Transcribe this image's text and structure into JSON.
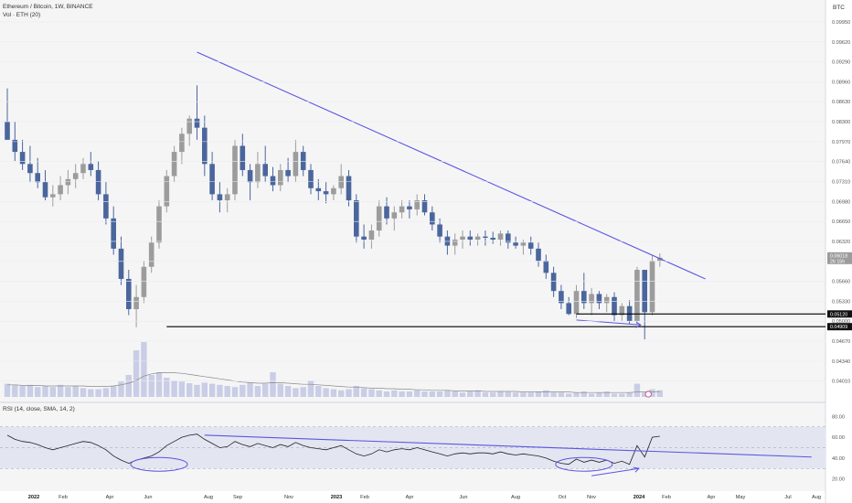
{
  "header": {
    "title": "Ethereum / Bitcoin, 1W, BINANCE",
    "volume_label": "Vol · ETH (20)",
    "currency": "BTC"
  },
  "rsi_header": "RSI (14, close, SMA, 14, 2)",
  "price_badges": {
    "current": "0.06018",
    "current_sub": "26 15h",
    "support_high": "0.05120",
    "support_low": "0.04909"
  },
  "colors": {
    "up": "#9c9c9c",
    "down": "#4a669c",
    "trendline": "#5a55e0",
    "support": "#000000",
    "rsi": "#222222",
    "rsi_band": "#e3e6f1"
  },
  "chart_data": [
    {
      "type": "candlestick",
      "title": "Ethereum / Bitcoin, 1W, BINANCE",
      "ylabel": "BTC",
      "ylim": [
        0.0396,
        0.1004
      ],
      "y_ticks": [
        0.0995,
        0.0962,
        0.0929,
        0.0896,
        0.0863,
        0.083,
        0.0797,
        0.0764,
        0.0731,
        0.0698,
        0.0665,
        0.0632,
        0.0599,
        0.0566,
        0.0533,
        0.05,
        0.0467,
        0.0434,
        0.0401
      ],
      "x_ticks": [
        "2022",
        "Feb",
        "Apr",
        "Jun",
        "Aug",
        "Sep",
        "Nov",
        "2023",
        "Feb",
        "Apr",
        "Jun",
        "Aug",
        "Oct",
        "Nov",
        "2024",
        "Feb",
        "Apr",
        "May",
        "Jul",
        "Aug"
      ],
      "candles": [
        [
          0.083,
          0.0885,
          0.0805,
          0.08
        ],
        [
          0.08,
          0.083,
          0.0765,
          0.078
        ],
        [
          0.078,
          0.08,
          0.075,
          0.076
        ],
        [
          0.076,
          0.079,
          0.073,
          0.0745
        ],
        [
          0.0745,
          0.077,
          0.072,
          0.073
        ],
        [
          0.073,
          0.075,
          0.07,
          0.0705
        ],
        [
          0.0705,
          0.0725,
          0.069,
          0.071
        ],
        [
          0.071,
          0.074,
          0.07,
          0.0725
        ],
        [
          0.0725,
          0.075,
          0.071,
          0.0735
        ],
        [
          0.0735,
          0.076,
          0.072,
          0.0745
        ],
        [
          0.0745,
          0.077,
          0.0735,
          0.076
        ],
        [
          0.076,
          0.078,
          0.074,
          0.075
        ],
        [
          0.075,
          0.0765,
          0.07,
          0.071
        ],
        [
          0.071,
          0.073,
          0.066,
          0.067
        ],
        [
          0.067,
          0.069,
          0.061,
          0.062
        ],
        [
          0.062,
          0.064,
          0.056,
          0.057
        ],
        [
          0.057,
          0.0585,
          0.051,
          0.052
        ],
        [
          0.052,
          0.056,
          0.049,
          0.054
        ],
        [
          0.054,
          0.06,
          0.053,
          0.059
        ],
        [
          0.059,
          0.064,
          0.058,
          0.063
        ],
        [
          0.063,
          0.07,
          0.062,
          0.069
        ],
        [
          0.069,
          0.075,
          0.068,
          0.074
        ],
        [
          0.074,
          0.079,
          0.073,
          0.078
        ],
        [
          0.078,
          0.082,
          0.076,
          0.081
        ],
        [
          0.081,
          0.084,
          0.079,
          0.0835
        ],
        [
          0.0835,
          0.089,
          0.08,
          0.082
        ],
        [
          0.082,
          0.084,
          0.074,
          0.076
        ],
        [
          0.076,
          0.078,
          0.07,
          0.071
        ],
        [
          0.071,
          0.073,
          0.068,
          0.07
        ],
        [
          0.07,
          0.072,
          0.068,
          0.071
        ],
        [
          0.071,
          0.08,
          0.07,
          0.079
        ],
        [
          0.079,
          0.081,
          0.074,
          0.075
        ],
        [
          0.075,
          0.076,
          0.07,
          0.073
        ],
        [
          0.073,
          0.078,
          0.072,
          0.076
        ],
        [
          0.076,
          0.079,
          0.073,
          0.074
        ],
        [
          0.074,
          0.0755,
          0.0715,
          0.0725
        ],
        [
          0.0725,
          0.076,
          0.0715,
          0.075
        ],
        [
          0.075,
          0.077,
          0.073,
          0.074
        ],
        [
          0.074,
          0.08,
          0.073,
          0.078
        ],
        [
          0.078,
          0.079,
          0.074,
          0.075
        ],
        [
          0.075,
          0.076,
          0.071,
          0.072
        ],
        [
          0.072,
          0.0735,
          0.07,
          0.0715
        ],
        [
          0.0715,
          0.073,
          0.0695,
          0.071
        ],
        [
          0.071,
          0.0725,
          0.07,
          0.072
        ],
        [
          0.072,
          0.076,
          0.071,
          0.074
        ],
        [
          0.074,
          0.075,
          0.069,
          0.07
        ],
        [
          0.07,
          0.071,
          0.063,
          0.064
        ],
        [
          0.064,
          0.066,
          0.062,
          0.0635
        ],
        [
          0.0635,
          0.066,
          0.062,
          0.065
        ],
        [
          0.065,
          0.07,
          0.064,
          0.069
        ],
        [
          0.069,
          0.0705,
          0.066,
          0.067
        ],
        [
          0.067,
          0.069,
          0.065,
          0.068
        ],
        [
          0.068,
          0.07,
          0.067,
          0.069
        ],
        [
          0.069,
          0.07,
          0.067,
          0.0685
        ],
        [
          0.0685,
          0.071,
          0.0675,
          0.07
        ],
        [
          0.07,
          0.071,
          0.0675,
          0.068
        ],
        [
          0.068,
          0.069,
          0.065,
          0.066
        ],
        [
          0.066,
          0.067,
          0.063,
          0.064
        ],
        [
          0.064,
          0.065,
          0.061,
          0.0625
        ],
        [
          0.0625,
          0.0645,
          0.061,
          0.0635
        ],
        [
          0.0635,
          0.065,
          0.062,
          0.064
        ],
        [
          0.064,
          0.065,
          0.0625,
          0.0635
        ],
        [
          0.0635,
          0.0645,
          0.0625,
          0.064
        ],
        [
          0.064,
          0.065,
          0.0625,
          0.0638
        ],
        [
          0.0638,
          0.0648,
          0.0628,
          0.0635
        ],
        [
          0.0635,
          0.065,
          0.0625,
          0.0645
        ],
        [
          0.0645,
          0.065,
          0.062,
          0.063
        ],
        [
          0.063,
          0.064,
          0.062,
          0.0625
        ],
        [
          0.0625,
          0.0635,
          0.061,
          0.063
        ],
        [
          0.063,
          0.064,
          0.061,
          0.062
        ],
        [
          0.062,
          0.063,
          0.059,
          0.06
        ],
        [
          0.06,
          0.061,
          0.057,
          0.058
        ],
        [
          0.058,
          0.059,
          0.054,
          0.055
        ],
        [
          0.055,
          0.056,
          0.052,
          0.053
        ],
        [
          0.053,
          0.054,
          0.051,
          0.0512
        ],
        [
          0.0512,
          0.056,
          0.0505,
          0.055
        ],
        [
          0.055,
          0.058,
          0.052,
          0.053
        ],
        [
          0.053,
          0.0555,
          0.051,
          0.0545
        ],
        [
          0.0545,
          0.055,
          0.052,
          0.053
        ],
        [
          0.053,
          0.0545,
          0.0515,
          0.054
        ],
        [
          0.054,
          0.0548,
          0.05,
          0.051
        ],
        [
          0.051,
          0.053,
          0.05,
          0.0525
        ],
        [
          0.0525,
          0.0535,
          0.0495,
          0.05
        ],
        [
          0.05,
          0.059,
          0.0495,
          0.0585
        ],
        [
          0.0585,
          0.0585,
          0.047,
          0.0515
        ],
        [
          0.0515,
          0.061,
          0.051,
          0.06
        ],
        [
          0.06,
          0.0612,
          0.059,
          0.0605
        ]
      ],
      "trendline": [
        [
          25,
          0.0945
        ],
        [
          92,
          0.057
        ]
      ],
      "support_levels": [
        0.0512,
        0.0491
      ]
    },
    {
      "type": "bar",
      "title": "Vol · ETH (20)",
      "note": "volume bars in relative units (max = 100), with 20-period moving average",
      "values": [
        24,
        22,
        20,
        22,
        18,
        20,
        18,
        22,
        18,
        20,
        16,
        14,
        14,
        16,
        20,
        28,
        40,
        85,
        100,
        40,
        45,
        35,
        30,
        28,
        25,
        22,
        26,
        24,
        22,
        20,
        18,
        22,
        26,
        20,
        24,
        45,
        24,
        20,
        16,
        18,
        30,
        20,
        16,
        14,
        12,
        14,
        20,
        16,
        14,
        12,
        10,
        12,
        10,
        10,
        12,
        10,
        10,
        10,
        12,
        10,
        8,
        10,
        12,
        8,
        8,
        10,
        9,
        8,
        8,
        8,
        10,
        12,
        8,
        8,
        6,
        8,
        10,
        6,
        8,
        10,
        6,
        6,
        8,
        24,
        8,
        14,
        12
      ],
      "ma": [
        22,
        22,
        21,
        21,
        21,
        20,
        20,
        20,
        20,
        20,
        20,
        19,
        19,
        19,
        20,
        22,
        25,
        30,
        38,
        42,
        44,
        44,
        44,
        43,
        41,
        39,
        37,
        35,
        33,
        31,
        29,
        27,
        26,
        25,
        25,
        26,
        26,
        25,
        24,
        23,
        23,
        22,
        21,
        20,
        19,
        18,
        18,
        17,
        16,
        16,
        15,
        15,
        14,
        14,
        13,
        13,
        12,
        12,
        12,
        11,
        11,
        11,
        11,
        10,
        10,
        10,
        10,
        10,
        9,
        9,
        9,
        9,
        9,
        9,
        9,
        8,
        8,
        8,
        8,
        8,
        8,
        8,
        8,
        9,
        9,
        9,
        10
      ]
    },
    {
      "type": "line",
      "title": "RSI (14, close, SMA, 14, 2)",
      "ylim": [
        10,
        90
      ],
      "y_ticks": [
        80,
        60,
        40,
        20
      ],
      "band": [
        30,
        70
      ],
      "values": [
        62,
        58,
        56,
        55,
        53,
        50,
        48,
        50,
        52,
        54,
        56,
        55,
        52,
        48,
        42,
        38,
        35,
        38,
        40,
        42,
        46,
        52,
        56,
        60,
        62,
        63,
        58,
        54,
        50,
        51,
        56,
        53,
        51,
        54,
        52,
        50,
        53,
        51,
        55,
        52,
        50,
        49,
        48,
        50,
        52,
        48,
        44,
        42,
        44,
        48,
        46,
        48,
        49,
        48,
        50,
        48,
        46,
        44,
        42,
        44,
        45,
        44,
        45,
        45,
        44,
        46,
        44,
        43,
        44,
        43,
        42,
        40,
        37,
        35,
        34,
        39,
        36,
        38,
        36,
        38,
        35,
        37,
        34,
        52,
        41,
        60,
        61
      ],
      "trendline": [
        [
          26,
          62
        ],
        [
          106,
          41
        ]
      ]
    }
  ]
}
